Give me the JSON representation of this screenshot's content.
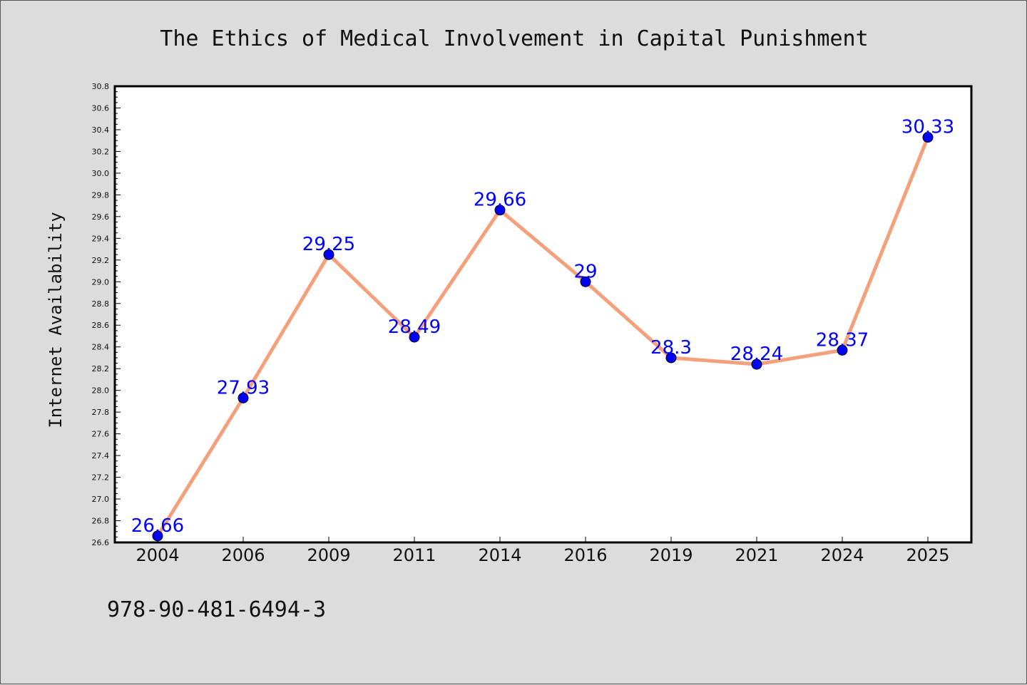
{
  "chart_data": {
    "type": "line",
    "title": "The Ethics of Medical Involvement in Capital Punishment",
    "xlabel": "",
    "ylabel": "Internet Availability",
    "categories": [
      "2004",
      "2006",
      "2009",
      "2011",
      "2014",
      "2016",
      "2019",
      "2021",
      "2024",
      "2025"
    ],
    "series": [
      {
        "values": [
          26.66,
          27.93,
          29.25,
          28.49,
          29.66,
          29,
          28.3,
          28.24,
          28.37,
          30.33
        ],
        "data_labels": [
          "26.66",
          "27.93",
          "29.25",
          "28.49",
          "29.66",
          "29",
          "28.3",
          "28.24",
          "28.37",
          "30.33"
        ],
        "line_color": "#f4a07c",
        "marker_color": "#0000ff"
      }
    ],
    "ylim": [
      26.6,
      30.8
    ],
    "yticks": [
      "26.6",
      "26.8",
      "27.0",
      "27.2",
      "27.4",
      "27.6",
      "27.8",
      "28.0",
      "28.2",
      "28.4",
      "28.6",
      "28.8",
      "29.0",
      "29.2",
      "29.4",
      "29.6",
      "29.8",
      "30.0",
      "30.2",
      "30.4",
      "30.6",
      "30.8"
    ],
    "grid": false,
    "legend": "none"
  },
  "footer": {
    "isbn": "978-90-481-6494-3"
  },
  "colors": {
    "background": "#dcdcdc",
    "plot_background": "#ffffff",
    "line": "#f4a07c",
    "marker": "#0000ff",
    "data_label": "#0000ff"
  }
}
